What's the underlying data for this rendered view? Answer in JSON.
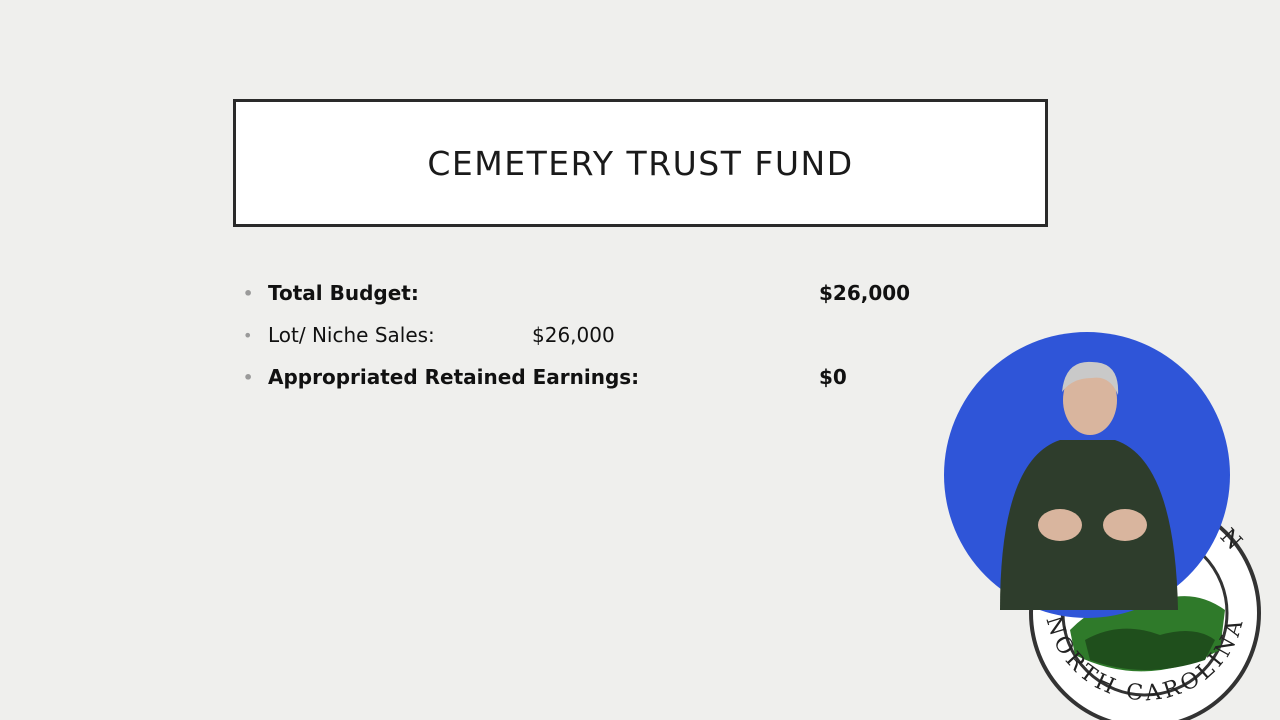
{
  "slide": {
    "title": "CEMETERY TRUST FUND",
    "items": [
      {
        "label": "Total Budget:",
        "value": "$26,000",
        "bold": true
      },
      {
        "label": "Lot/ Niche Sales:",
        "value": "$26,000",
        "bold": false
      },
      {
        "label": "Appropriated Retained Earnings:",
        "value": "$0",
        "bold": true
      }
    ]
  },
  "seal": {
    "bottom_text": "NORTH CAROLINA",
    "top_text": "NTON"
  }
}
